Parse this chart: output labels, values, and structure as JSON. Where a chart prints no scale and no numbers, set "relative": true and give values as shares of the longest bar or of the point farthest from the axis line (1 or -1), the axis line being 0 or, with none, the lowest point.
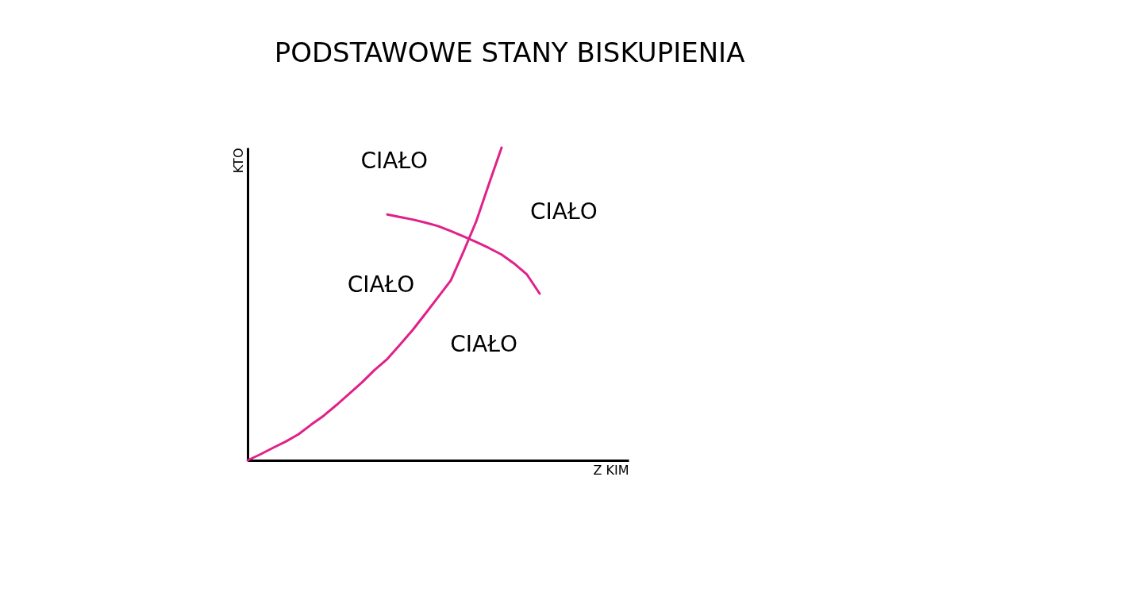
{
  "chart_data": {
    "type": "line",
    "title": "PODSTAWOWE STANY BISKUPIENIA",
    "xlabel": "Z KIM",
    "ylabel": "KTO",
    "relative": true,
    "grid": false,
    "legend": false,
    "tick_labels": false,
    "marker": "none",
    "line_style": "solid",
    "annotations": [
      "CIAŁO",
      "CIAŁO",
      "CIAŁO",
      "CIAŁO"
    ],
    "categories": [
      null,
      null,
      null,
      null,
      null,
      null,
      null,
      null,
      null,
      null,
      null,
      null,
      null,
      null,
      null,
      null,
      null,
      null,
      null,
      null,
      null,
      null,
      null,
      null,
      null,
      null,
      null,
      null,
      null,
      null,
      null
    ],
    "series": [
      {
        "color": "#e0218a",
        "values": [
          0,
          0.019,
          0.04,
          0.06,
          0.083,
          0.114,
          0.143,
          0.177,
          0.213,
          0.249,
          0.289,
          0.324,
          0.37,
          0.417,
          0.469,
          0.522,
          0.575,
          0.667,
          0.764,
          0.883,
          1,
          null,
          null,
          null,
          null,
          null,
          null,
          null,
          null,
          null,
          null
        ]
      },
      {
        "color": "#e0218a",
        "values": [
          null,
          null,
          null,
          null,
          null,
          null,
          null,
          null,
          null,
          null,
          null,
          0.786,
          0.778,
          0.77,
          0.76,
          0.749,
          0.733,
          0.716,
          0.698,
          0.679,
          0.658,
          0.629,
          0.594,
          0.533,
          null,
          null,
          null,
          null,
          null,
          null,
          null
        ]
      }
    ]
  }
}
